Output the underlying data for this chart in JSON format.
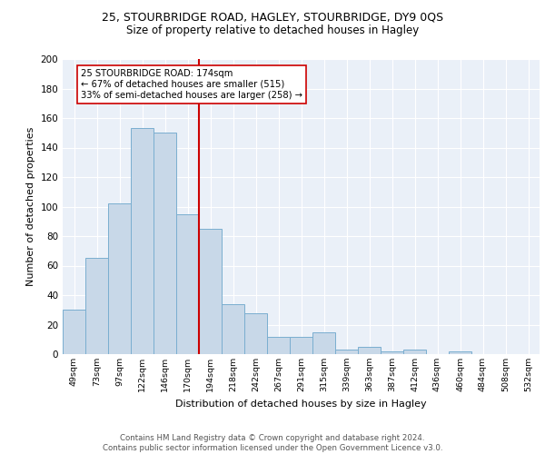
{
  "title1": "25, STOURBRIDGE ROAD, HAGLEY, STOURBRIDGE, DY9 0QS",
  "title2": "Size of property relative to detached houses in Hagley",
  "xlabel": "Distribution of detached houses by size in Hagley",
  "ylabel": "Number of detached properties",
  "categories": [
    "49sqm",
    "73sqm",
    "97sqm",
    "122sqm",
    "146sqm",
    "170sqm",
    "194sqm",
    "218sqm",
    "242sqm",
    "267sqm",
    "291sqm",
    "315sqm",
    "339sqm",
    "363sqm",
    "387sqm",
    "412sqm",
    "436sqm",
    "460sqm",
    "484sqm",
    "508sqm",
    "532sqm"
  ],
  "values": [
    30,
    65,
    102,
    153,
    150,
    95,
    85,
    34,
    28,
    12,
    12,
    15,
    3,
    5,
    2,
    3,
    0,
    2,
    0,
    0,
    0
  ],
  "bar_color": "#c8d8e8",
  "bar_edge_color": "#7aaed0",
  "vline_color": "#cc0000",
  "vline_x_index": 5,
  "ylim": [
    0,
    200
  ],
  "yticks": [
    0,
    20,
    40,
    60,
    80,
    100,
    120,
    140,
    160,
    180,
    200
  ],
  "annotation_text": "25 STOURBRIDGE ROAD: 174sqm\n← 67% of detached houses are smaller (515)\n33% of semi-detached houses are larger (258) →",
  "annotation_box_color": "#ffffff",
  "annotation_border_color": "#cc0000",
  "footer_text": "Contains HM Land Registry data © Crown copyright and database right 2024.\nContains public sector information licensed under the Open Government Licence v3.0.",
  "plot_bg_color": "#eaf0f8",
  "grid_color": "#ffffff",
  "title1_fontsize": 9,
  "title2_fontsize": 8.5
}
